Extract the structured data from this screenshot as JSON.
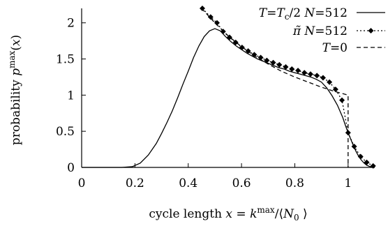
{
  "chart_data": {
    "type": "line",
    "xlabel": "cycle length x = k^max/⟨N_0⟩",
    "ylabel": "probability p^max(x)",
    "xlim": [
      0,
      1.1
    ],
    "ylim": [
      0,
      2.2
    ],
    "x_ticks": [
      "0",
      "0.2",
      "0.4",
      "0.6",
      "0.8",
      "1"
    ],
    "x_tick_values": [
      0,
      0.2,
      0.4,
      0.6,
      0.8,
      1.0
    ],
    "y_ticks": [
      "0",
      "0.5",
      "1",
      "1.5",
      "2"
    ],
    "y_tick_values": [
      0,
      0.5,
      1.0,
      1.5,
      2.0
    ],
    "grid": false,
    "legend_position": "top-right",
    "series": [
      {
        "name": "T=Tc/2 N=512",
        "style": "solid",
        "x": [
          0.0,
          0.15,
          0.19,
          0.22,
          0.25,
          0.28,
          0.3,
          0.32,
          0.34,
          0.36,
          0.38,
          0.4,
          0.42,
          0.44,
          0.46,
          0.48,
          0.5,
          0.52,
          0.54,
          0.56,
          0.58,
          0.6,
          0.62,
          0.64,
          0.66,
          0.68,
          0.7,
          0.72,
          0.74,
          0.76,
          0.78,
          0.8,
          0.82,
          0.84,
          0.86,
          0.88,
          0.9,
          0.92,
          0.94,
          0.96,
          0.98,
          0.99,
          1.0,
          1.01,
          1.02,
          1.03,
          1.04,
          1.05,
          1.06,
          1.07,
          1.08,
          1.09,
          1.1
        ],
        "y": [
          0.0,
          0.0,
          0.01,
          0.06,
          0.17,
          0.33,
          0.47,
          0.62,
          0.78,
          0.96,
          1.15,
          1.33,
          1.52,
          1.68,
          1.81,
          1.89,
          1.92,
          1.89,
          1.81,
          1.74,
          1.68,
          1.63,
          1.58,
          1.54,
          1.5,
          1.47,
          1.44,
          1.41,
          1.38,
          1.36,
          1.33,
          1.31,
          1.29,
          1.27,
          1.25,
          1.22,
          1.18,
          1.1,
          0.99,
          0.86,
          0.69,
          0.58,
          0.48,
          0.39,
          0.3,
          0.22,
          0.15,
          0.1,
          0.06,
          0.03,
          0.015,
          0.005,
          0.0
        ]
      },
      {
        "name": "π̃ N=512",
        "style": "dotted-diamond",
        "x": [
          0.453,
          0.484,
          0.508,
          0.531,
          0.555,
          0.578,
          0.602,
          0.625,
          0.648,
          0.672,
          0.695,
          0.719,
          0.742,
          0.766,
          0.789,
          0.812,
          0.836,
          0.859,
          0.883,
          0.906,
          0.93,
          0.953,
          0.977,
          1.0,
          1.023,
          1.047,
          1.07,
          1.094
        ],
        "y": [
          2.2,
          2.08,
          2.0,
          1.88,
          1.8,
          1.73,
          1.66,
          1.61,
          1.56,
          1.52,
          1.48,
          1.45,
          1.42,
          1.39,
          1.36,
          1.34,
          1.31,
          1.29,
          1.27,
          1.24,
          1.18,
          1.08,
          0.93,
          0.48,
          0.29,
          0.15,
          0.07,
          0.02
        ]
      },
      {
        "name": "T=0",
        "style": "dashed",
        "x": [
          0.45,
          0.48,
          0.5,
          0.55,
          0.6,
          0.65,
          0.7,
          0.75,
          0.8,
          0.85,
          0.9,
          0.95,
          1.0,
          1.0,
          1.0
        ],
        "y": [
          2.2,
          2.08,
          2.0,
          1.82,
          1.67,
          1.54,
          1.43,
          1.33,
          1.25,
          1.18,
          1.11,
          1.05,
          1.0,
          0.5,
          0.0
        ]
      }
    ]
  }
}
